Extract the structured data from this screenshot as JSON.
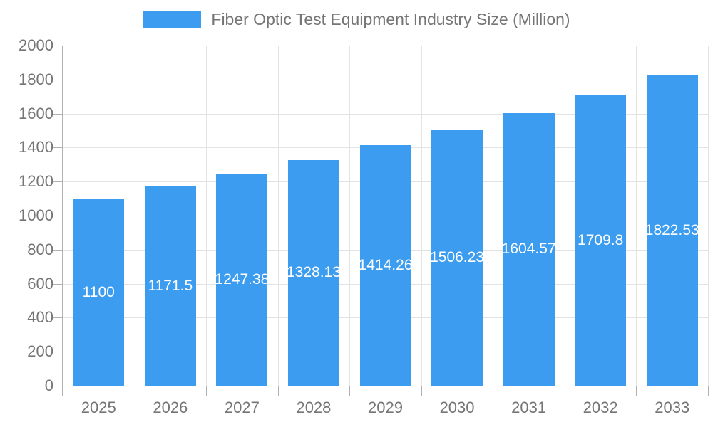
{
  "chart_data": {
    "type": "bar",
    "title": "Fiber Optic Test Equipment Industry Size (Million)",
    "categories": [
      "2025",
      "2026",
      "2027",
      "2028",
      "2029",
      "2030",
      "2031",
      "2032",
      "2033"
    ],
    "values": [
      1100,
      1171.5,
      1247.38,
      1328.13,
      1414.26,
      1506.23,
      1604.57,
      1709.8,
      1822.53
    ],
    "bar_labels": [
      "1100",
      "1171.5",
      "1247.38",
      "1328.13",
      "1414.26",
      "1506.23",
      "1604.57",
      "1709.8",
      "1822.53"
    ],
    "xlabel": "",
    "ylabel": "",
    "ylim": [
      0,
      2000
    ],
    "ytick_step": 200,
    "ytick_labels": [
      "0",
      "200",
      "400",
      "600",
      "800",
      "1000",
      "1200",
      "1400",
      "1600",
      "1800",
      "2000"
    ],
    "grid": true,
    "legend_position": "top-center",
    "colors": {
      "bar": "#3b9cf0",
      "bar_value_text": "#ffffff",
      "axis_text": "#757575",
      "title_text": "#757575",
      "grid_line": "#e3e3e3",
      "axis_line": "#b0b0b0",
      "background": "#ffffff"
    }
  }
}
